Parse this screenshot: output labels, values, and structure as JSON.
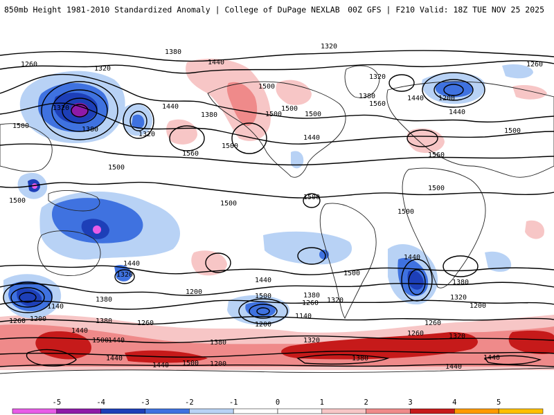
{
  "header": {
    "left": "850mb Height 1981-2010 Standardized Anomaly | College of DuPage NEXLAB",
    "right": "00Z GFS | F210 Valid: 18Z TUE NOV 25 2025"
  },
  "colors": {
    "neg5": "#e85ce8",
    "neg4": "#8e1aa8",
    "neg3": "#1d3fb8",
    "neg2": "#3f72e0",
    "neg1": "#b8d2f5",
    "zero": "#ffffff",
    "pos1": "#f7c6c6",
    "pos2": "#ef8a8a",
    "pos3": "#c61a1a",
    "pos4": "#ff9a00",
    "pos5": "#ffc000"
  },
  "colorbar": {
    "ticks": [
      "-5",
      "-4",
      "-3",
      "-2",
      "-1",
      "0",
      "1",
      "2",
      "3",
      "4",
      "5"
    ]
  },
  "contour_labels": [
    {
      "text": "1320"
    },
    {
      "text": "1380"
    },
    {
      "text": "1440"
    },
    {
      "text": "1500"
    },
    {
      "text": "1320"
    },
    {
      "text": "1260"
    },
    {
      "text": "1260"
    },
    {
      "text": "1320"
    },
    {
      "text": "1380"
    },
    {
      "text": "1440"
    },
    {
      "text": "1560"
    },
    {
      "text": "1500"
    },
    {
      "text": "1500"
    },
    {
      "text": "1380"
    },
    {
      "text": "1440"
    },
    {
      "text": "1320"
    },
    {
      "text": "1560"
    },
    {
      "text": "1500"
    },
    {
      "text": "1500"
    },
    {
      "text": "1440"
    },
    {
      "text": "1380"
    },
    {
      "text": "1320"
    },
    {
      "text": "1200"
    },
    {
      "text": "1440"
    },
    {
      "text": "1500"
    },
    {
      "text": "1560"
    },
    {
      "text": "1500"
    },
    {
      "text": "1500"
    },
    {
      "text": "1500"
    },
    {
      "text": "1500"
    },
    {
      "text": "1500"
    },
    {
      "text": "1500"
    },
    {
      "text": "1440"
    },
    {
      "text": "1320"
    },
    {
      "text": "1380"
    },
    {
      "text": "1140"
    },
    {
      "text": "1200"
    },
    {
      "text": "1260"
    },
    {
      "text": "1380"
    },
    {
      "text": "1440"
    },
    {
      "text": "1500"
    },
    {
      "text": "1260"
    },
    {
      "text": "1200"
    },
    {
      "text": "1500"
    },
    {
      "text": "1440"
    },
    {
      "text": "1380"
    },
    {
      "text": "1260"
    },
    {
      "text": "1320"
    },
    {
      "text": "1200"
    },
    {
      "text": "1140"
    },
    {
      "text": "1500"
    },
    {
      "text": "1440"
    },
    {
      "text": "1500"
    },
    {
      "text": "1380"
    },
    {
      "text": "1320"
    },
    {
      "text": "1200"
    },
    {
      "text": "1260"
    },
    {
      "text": "1320"
    },
    {
      "text": "1440"
    },
    {
      "text": "1500"
    },
    {
      "text": "1380"
    },
    {
      "text": "1200"
    },
    {
      "text": "1260"
    },
    {
      "text": "1320"
    },
    {
      "text": "1380"
    },
    {
      "text": "1440"
    },
    {
      "text": "1440"
    },
    {
      "text": "1440"
    },
    {
      "text": "1440"
    }
  ]
}
